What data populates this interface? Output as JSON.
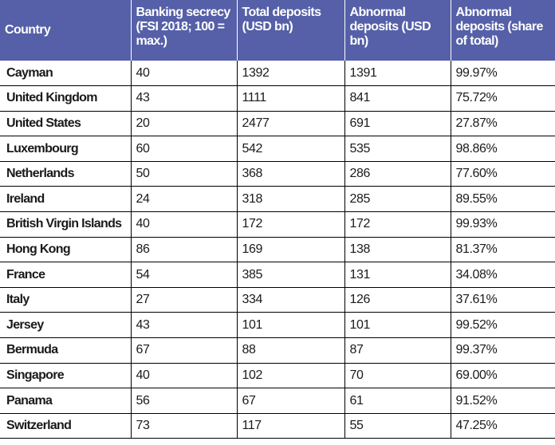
{
  "table": {
    "headers": [
      "Country",
      "Banking secrecy (FSI 2018; 100 = max.)",
      "Total deposits (USD bn)",
      "Abnormal deposits (USD bn)",
      "Abnormal deposits (share of total)"
    ],
    "rows": [
      [
        "Cayman",
        "40",
        "1392",
        "1391",
        "99.97%"
      ],
      [
        "United Kingdom",
        "43",
        "1111",
        "841",
        "75.72%"
      ],
      [
        "United States",
        "20",
        "2477",
        "691",
        "27.87%"
      ],
      [
        "Luxembourg",
        "60",
        "542",
        "535",
        "98.86%"
      ],
      [
        "Netherlands",
        "50",
        "368",
        "286",
        "77.60%"
      ],
      [
        "Ireland",
        "24",
        "318",
        "285",
        "89.55%"
      ],
      [
        "British Virgin Islands",
        "40",
        "172",
        "172",
        "99.93%"
      ],
      [
        "Hong Kong",
        "86",
        "169",
        "138",
        "81.37%"
      ],
      [
        "France",
        "54",
        "385",
        "131",
        "34.08%"
      ],
      [
        "Italy",
        "27",
        "334",
        "126",
        "37.61%"
      ],
      [
        "Jersey",
        "43",
        "101",
        "101",
        "99.52%"
      ],
      [
        "Bermuda",
        "67",
        "88",
        "87",
        "99.37%"
      ],
      [
        "Singapore",
        "40",
        "102",
        "70",
        "69.00%"
      ],
      [
        "Panama",
        "56",
        "67",
        "61",
        "91.52%"
      ],
      [
        "Switzerland",
        "73",
        "117",
        "55",
        "47.25%"
      ]
    ]
  },
  "colors": {
    "header_bg": "#5560a8",
    "header_text": "#ffffff",
    "grid": "#000000",
    "cell_text": "#1a1a1a"
  }
}
